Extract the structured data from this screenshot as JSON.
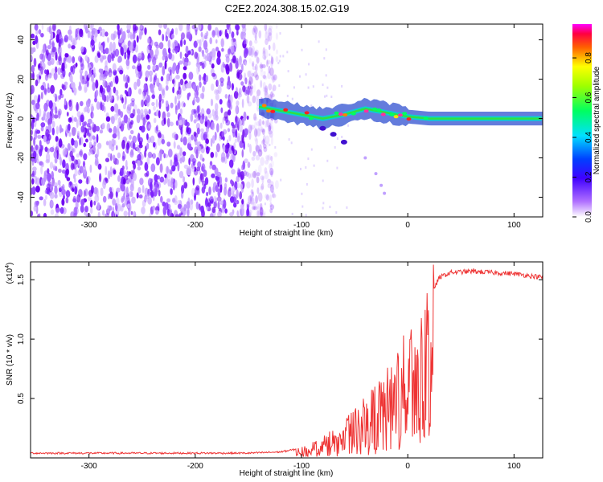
{
  "title": "C2E2.2024.308.15.02.G19",
  "chart_data": [
    {
      "type": "heatmap",
      "title": "C2E2.2024.308.15.02.G19",
      "xlabel": "Height of straight line (km)",
      "ylabel": "Frequency (Hz)",
      "xlim": [
        -355,
        127
      ],
      "ylim": [
        -50,
        48
      ],
      "xticks": [
        -300,
        -200,
        -100,
        0,
        100
      ],
      "yticks": [
        -40,
        -20,
        0,
        20,
        40
      ],
      "noise_region_x": [
        -355,
        -135
      ],
      "signal_trace": {
        "x": [
          -140,
          -120,
          -100,
          -80,
          -60,
          -40,
          -20,
          0,
          20,
          60,
          100,
          127
        ],
        "freq": [
          6,
          4,
          2,
          0,
          2,
          5,
          3,
          1,
          0,
          0,
          0,
          0
        ]
      },
      "colorbar": {
        "label": "Normalized spectral amplitude",
        "range": [
          0.0,
          0.97
        ],
        "ticks": [
          0.0,
          0.2,
          0.4,
          0.6,
          0.8
        ],
        "colors": [
          "#ffffff",
          "#7a00ff",
          "#0000ff",
          "#00ffff",
          "#00ff00",
          "#ffff00",
          "#ff8000",
          "#ff0000",
          "#ff00ff"
        ]
      }
    },
    {
      "type": "line",
      "xlabel": "Height of straight line (km)",
      "ylabel": "SNR (10 * v/v)",
      "scale_label": "(x10",
      "scale_exp": "4",
      "xlim": [
        -355,
        127
      ],
      "ylim": [
        0,
        1.65
      ],
      "xticks": [
        -300,
        -200,
        -100,
        0,
        100
      ],
      "yticks": [
        0.5,
        1.0,
        1.5
      ],
      "series": [
        {
          "name": "SNR",
          "color": "#ee3333",
          "x": [
            -355,
            -300,
            -250,
            -200,
            -150,
            -120,
            -100,
            -90,
            -80,
            -70,
            -60,
            -50,
            -40,
            -30,
            -20,
            -15,
            -10,
            -5,
            0,
            5,
            10,
            20,
            30,
            40,
            60,
            80,
            100,
            127
          ],
          "y": [
            0.04,
            0.04,
            0.04,
            0.04,
            0.04,
            0.05,
            0.08,
            0.12,
            0.16,
            0.22,
            0.28,
            0.36,
            0.45,
            0.55,
            0.65,
            0.75,
            0.85,
            0.95,
            1.0,
            1.05,
            1.15,
            1.35,
            1.52,
            1.56,
            1.57,
            1.56,
            1.55,
            1.52
          ]
        }
      ]
    }
  ]
}
